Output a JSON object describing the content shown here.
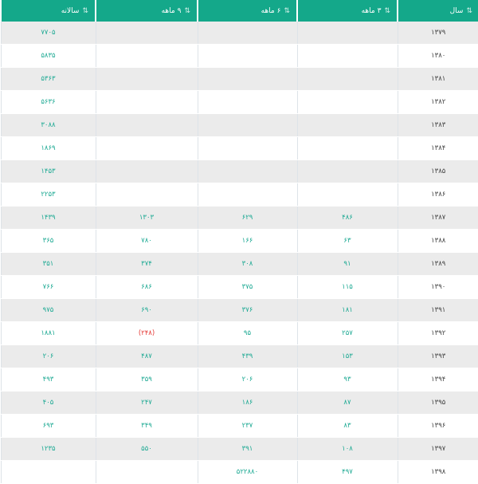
{
  "headers": [
    "سال",
    "۳ ماهه",
    "۶ ماهه",
    "۹ ماهه",
    "سالانه"
  ],
  "sort_icon": "sort-arrows-icon",
  "colors": {
    "header": "#14a88a",
    "value": "#1faa94",
    "negative": "#e53935"
  },
  "rows": [
    [
      "۱۳۷۹",
      "",
      "",
      "",
      "۷۷۰۵"
    ],
    [
      "۱۳۸۰",
      "",
      "",
      "",
      "۵۸۳۵"
    ],
    [
      "۱۳۸۱",
      "",
      "",
      "",
      "۵۳۶۳"
    ],
    [
      "۱۳۸۲",
      "",
      "",
      "",
      "۵۶۳۶"
    ],
    [
      "۱۳۸۳",
      "",
      "",
      "",
      "۳۰۸۸"
    ],
    [
      "۱۳۸۴",
      "",
      "",
      "",
      "۱۸۶۹"
    ],
    [
      "۱۳۸۵",
      "",
      "",
      "",
      "۱۴۵۳"
    ],
    [
      "۱۳۸۶",
      "",
      "",
      "",
      "۲۲۵۳"
    ],
    [
      "۱۳۸۷",
      "۴۸۶",
      "۶۲۹",
      "۱۳۰۳",
      "۱۴۳۹"
    ],
    [
      "۱۳۸۸",
      "۶۳",
      "۱۶۶",
      "۷۸۰",
      "۳۶۵"
    ],
    [
      "۱۳۸۹",
      "۹۱",
      "۳۰۸",
      "۳۷۴",
      "۳۵۱"
    ],
    [
      "۱۳۹۰",
      "۱۱۵",
      "۳۷۵",
      "۶۸۶",
      "۷۶۶"
    ],
    [
      "۱۳۹۱",
      "۱۸۱",
      "۳۷۶",
      "۶۹۰",
      "۹۷۵"
    ],
    [
      "۱۳۹۲",
      "۲۵۷",
      "۹۵",
      "(۲۴۸)",
      "۱۸۸۱"
    ],
    [
      "۱۳۹۳",
      "۱۵۳",
      "۴۳۹",
      "۴۸۷",
      "۲۰۶"
    ],
    [
      "۱۳۹۴",
      "۹۳",
      "۲۰۶",
      "۳۵۹",
      "۴۹۳"
    ],
    [
      "۱۳۹۵",
      "۸۷",
      "۱۸۶",
      "۲۴۷",
      "۴۰۵"
    ],
    [
      "۱۳۹۶",
      "۸۳",
      "۲۳۷",
      "۳۴۹",
      "۶۹۳"
    ],
    [
      "۱۳۹۷",
      "۱۰۸",
      "۳۹۱",
      "۵۵۰",
      "۱۲۳۵"
    ],
    [
      "۱۳۹۸",
      "۴۹۷",
      "۵۲۲۸۸۰",
      "",
      ""
    ]
  ]
}
